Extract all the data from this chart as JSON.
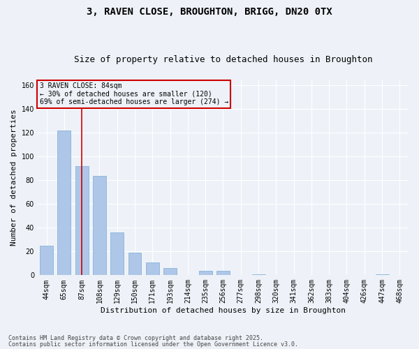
{
  "title1": "3, RAVEN CLOSE, BROUGHTON, BRIGG, DN20 0TX",
  "title2": "Size of property relative to detached houses in Broughton",
  "xlabel": "Distribution of detached houses by size in Broughton",
  "ylabel": "Number of detached properties",
  "categories": [
    "44sqm",
    "65sqm",
    "87sqm",
    "108sqm",
    "129sqm",
    "150sqm",
    "171sqm",
    "193sqm",
    "214sqm",
    "235sqm",
    "256sqm",
    "277sqm",
    "298sqm",
    "320sqm",
    "341sqm",
    "362sqm",
    "383sqm",
    "404sqm",
    "426sqm",
    "447sqm",
    "468sqm"
  ],
  "values": [
    25,
    122,
    92,
    84,
    36,
    19,
    11,
    6,
    0,
    4,
    4,
    0,
    1,
    0,
    0,
    0,
    0,
    0,
    0,
    1,
    0
  ],
  "bar_color": "#aec6e8",
  "bar_edge_color": "#7aadd4",
  "vline_x_index": 2,
  "vline_color": "#cc0000",
  "ylim": [
    0,
    165
  ],
  "yticks": [
    0,
    20,
    40,
    60,
    80,
    100,
    120,
    140,
    160
  ],
  "annotation_text": "3 RAVEN CLOSE: 84sqm\n← 30% of detached houses are smaller (120)\n69% of semi-detached houses are larger (274) →",
  "annotation_box_color": "#cc0000",
  "footer1": "Contains HM Land Registry data © Crown copyright and database right 2025.",
  "footer2": "Contains public sector information licensed under the Open Government Licence v3.0.",
  "background_color": "#eef2f8",
  "grid_color": "#ffffff",
  "title_fontsize": 10,
  "subtitle_fontsize": 9,
  "tick_fontsize": 7,
  "ylabel_fontsize": 8,
  "xlabel_fontsize": 8,
  "bar_width": 0.75
}
